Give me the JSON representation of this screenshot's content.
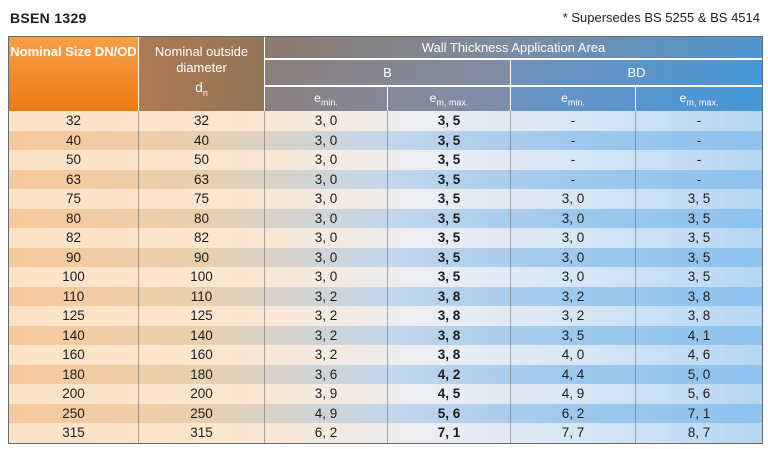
{
  "title": "BSEN 1329",
  "note": "* Supersedes BS 5255 & BS 4514",
  "headers": {
    "nominal_size": "Nominal Size DN/OD",
    "nominal_outside": "Nominal outside diameter",
    "dn_symbol": "d",
    "dn_sub": "n",
    "wall_area": "Wall Thickness Application Area",
    "group_b": "B",
    "group_bd": "BD",
    "e_symbol": "e",
    "sub_min": "min.",
    "sub_max": "m, max."
  },
  "rows": [
    {
      "size": "32",
      "od": "32",
      "b_min": "3, 0",
      "b_max": "3, 5",
      "bd_min": "-",
      "bd_max": "-"
    },
    {
      "size": "40",
      "od": "40",
      "b_min": "3, 0",
      "b_max": "3, 5",
      "bd_min": "-",
      "bd_max": "-"
    },
    {
      "size": "50",
      "od": "50",
      "b_min": "3, 0",
      "b_max": "3, 5",
      "bd_min": "-",
      "bd_max": "-"
    },
    {
      "size": "63",
      "od": "63",
      "b_min": "3, 0",
      "b_max": "3, 5",
      "bd_min": "-",
      "bd_max": "-"
    },
    {
      "size": "75",
      "od": "75",
      "b_min": "3, 0",
      "b_max": "3, 5",
      "bd_min": "3, 0",
      "bd_max": "3, 5"
    },
    {
      "size": "80",
      "od": "80",
      "b_min": "3, 0",
      "b_max": "3, 5",
      "bd_min": "3, 0",
      "bd_max": "3, 5"
    },
    {
      "size": "82",
      "od": "82",
      "b_min": "3, 0",
      "b_max": "3, 5",
      "bd_min": "3, 0",
      "bd_max": "3, 5"
    },
    {
      "size": "90",
      "od": "90",
      "b_min": "3, 0",
      "b_max": "3, 5",
      "bd_min": "3, 0",
      "bd_max": "3, 5"
    },
    {
      "size": "100",
      "od": "100",
      "b_min": "3, 0",
      "b_max": "3, 5",
      "bd_min": "3, 0",
      "bd_max": "3, 5"
    },
    {
      "size": "110",
      "od": "110",
      "b_min": "3, 2",
      "b_max": "3, 8",
      "bd_min": "3, 2",
      "bd_max": "3, 8"
    },
    {
      "size": "125",
      "od": "125",
      "b_min": "3, 2",
      "b_max": "3, 8",
      "bd_min": "3, 2",
      "bd_max": "3, 8"
    },
    {
      "size": "140",
      "od": "140",
      "b_min": "3, 2",
      "b_max": "3, 8",
      "bd_min": "3, 5",
      "bd_max": "4, 1"
    },
    {
      "size": "160",
      "od": "160",
      "b_min": "3, 2",
      "b_max": "3, 8",
      "bd_min": "4, 0",
      "bd_max": "4, 6"
    },
    {
      "size": "180",
      "od": "180",
      "b_min": "3, 6",
      "b_max": "4, 2",
      "bd_min": "4, 4",
      "bd_max": "5, 0"
    },
    {
      "size": "200",
      "od": "200",
      "b_min": "3, 9",
      "b_max": "4, 5",
      "bd_min": "4, 9",
      "bd_max": "5, 6"
    },
    {
      "size": "250",
      "od": "250",
      "b_min": "4, 9",
      "b_max": "5, 6",
      "bd_min": "6, 2",
      "bd_max": "7, 1"
    },
    {
      "size": "315",
      "od": "315",
      "b_min": "6, 2",
      "b_max": "7, 1",
      "bd_min": "7, 7",
      "bd_max": "8, 7"
    }
  ]
}
